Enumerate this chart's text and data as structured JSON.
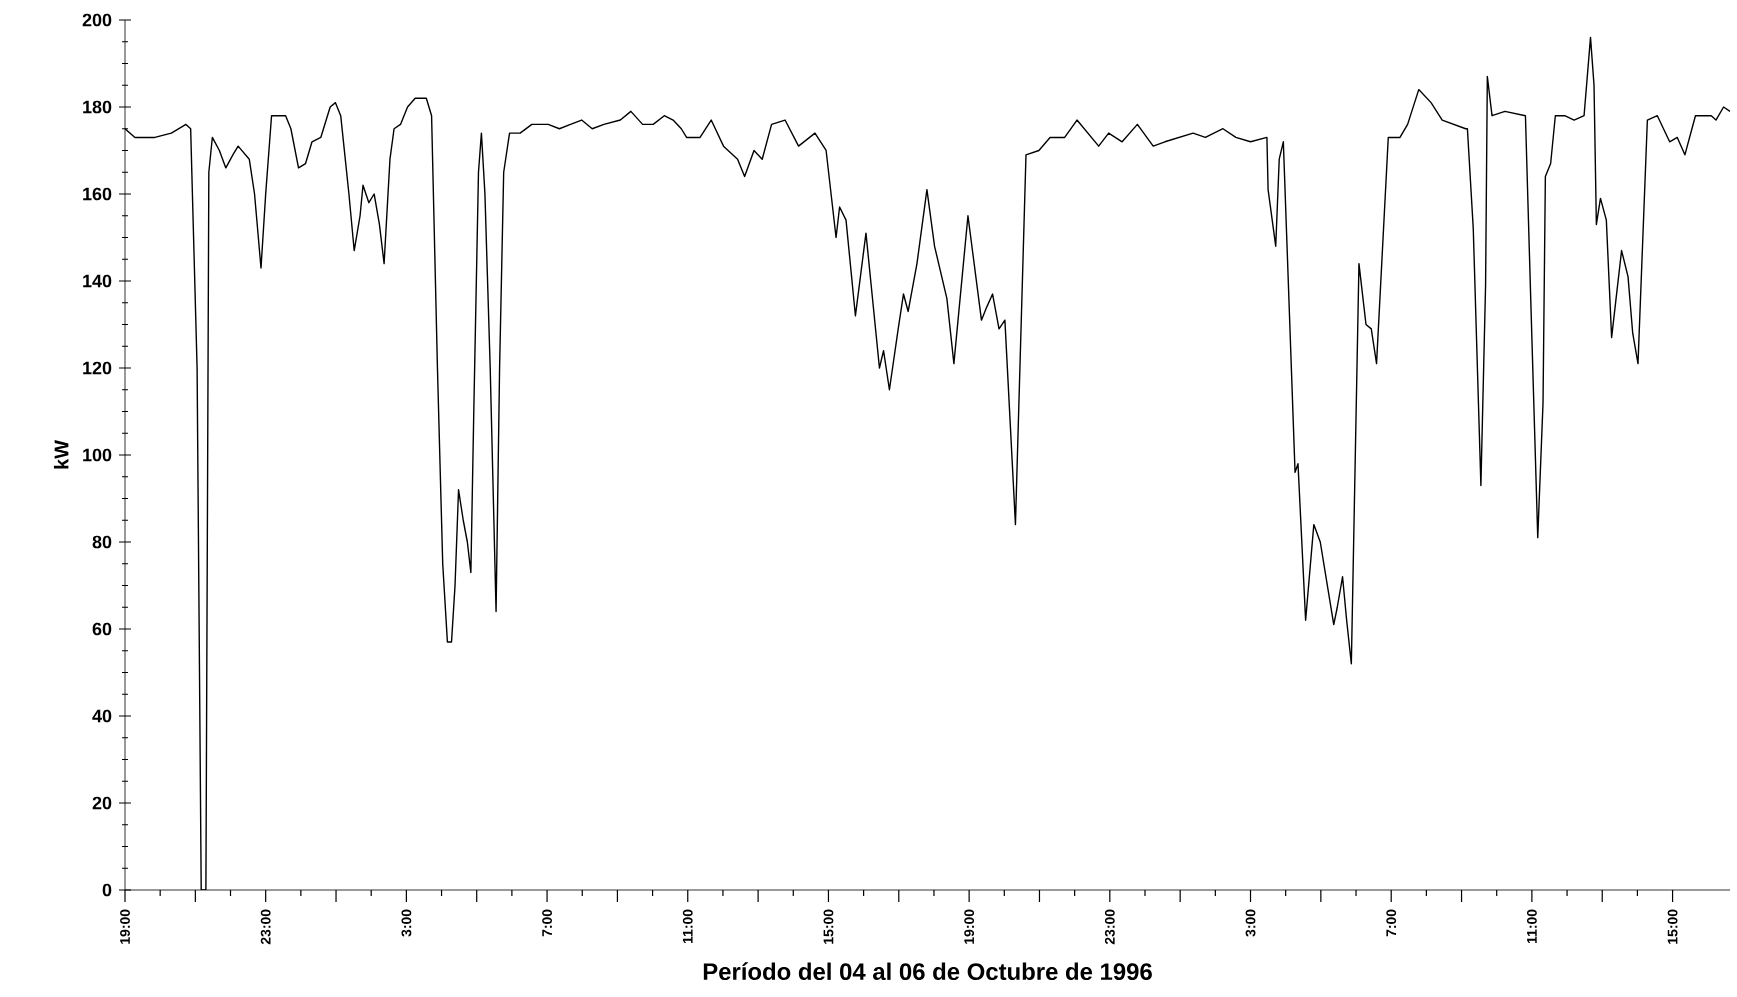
{
  "chart_data": {
    "type": "line",
    "xlabel": "Período del 04 al 06 de Octubre de 1996",
    "ylabel": "kW",
    "x": [
      "1996-10-04T19:00",
      "1996-10-04T19:17",
      "1996-10-04T19:51",
      "1996-10-04T20:19",
      "1996-10-04T20:44",
      "1996-10-04T20:52",
      "1996-10-04T21:03",
      "1996-10-04T21:10",
      "1996-10-04T21:18",
      "1996-10-04T21:23",
      "1996-10-04T21:29",
      "1996-10-04T21:41",
      "1996-10-04T21:52",
      "1996-10-04T22:04",
      "1996-10-04T22:13",
      "1996-10-04T22:32",
      "1996-10-04T22:41",
      "1996-10-04T22:52",
      "1996-10-04T23:00",
      "1996-10-04T23:10",
      "1996-10-04T23:34",
      "1996-10-04T23:43",
      "1996-10-04T23:56",
      "1996-10-05T00:08",
      "1996-10-05T00:19",
      "1996-10-05T00:34",
      "1996-10-05T00:50",
      "1996-10-05T00:59",
      "1996-10-05T01:08",
      "1996-10-05T01:22",
      "1996-10-05T01:31",
      "1996-10-05T01:41",
      "1996-10-05T01:46",
      "1996-10-05T01:56",
      "1996-10-05T02:05",
      "1996-10-05T02:14",
      "1996-10-05T02:22",
      "1996-10-05T02:32",
      "1996-10-05T02:39",
      "1996-10-05T02:50",
      "1996-10-05T03:02",
      "1996-10-05T03:15",
      "1996-10-05T03:34",
      "1996-10-05T03:43",
      "1996-10-05T03:53",
      "1996-10-05T04:02",
      "1996-10-05T04:10",
      "1996-10-05T04:17",
      "1996-10-05T04:23",
      "1996-10-05T04:29",
      "1996-10-05T04:37",
      "1996-10-05T04:44",
      "1996-10-05T04:50",
      "1996-10-05T04:55",
      "1996-10-05T05:03",
      "1996-10-05T05:08",
      "1996-10-05T05:14",
      "1996-10-05T05:23",
      "1996-10-05T05:33",
      "1996-10-05T05:39",
      "1996-10-05T05:46",
      "1996-10-05T05:56",
      "1996-10-05T06:14",
      "1996-10-05T06:34",
      "1996-10-05T07:02",
      "1996-10-05T07:21",
      "1996-10-05T07:40",
      "1996-10-05T07:59",
      "1996-10-05T08:17",
      "1996-10-05T08:37",
      "1996-10-05T09:05",
      "1996-10-05T09:23",
      "1996-10-05T09:43",
      "1996-10-05T10:01",
      "1996-10-05T10:20",
      "1996-10-05T10:35",
      "1996-10-05T10:49",
      "1996-10-05T10:58",
      "1996-10-05T11:21",
      "1996-10-05T11:40",
      "1996-10-05T12:01",
      "1996-10-05T12:25",
      "1996-10-05T12:37",
      "1996-10-05T12:53",
      "1996-10-05T13:07",
      "1996-10-05T13:23",
      "1996-10-05T13:46",
      "1996-10-05T14:09",
      "1996-10-05T14:37",
      "1996-10-05T14:56",
      "1996-10-05T15:13",
      "1996-10-05T15:19",
      "1996-10-05T15:30",
      "1996-10-05T15:46",
      "1996-10-05T16:04",
      "1996-10-05T16:27",
      "1996-10-05T16:34",
      "1996-10-05T16:44",
      "1996-10-05T16:59",
      "1996-10-05T17:08",
      "1996-10-05T17:16",
      "1996-10-05T17:31",
      "1996-10-05T17:48",
      "1996-10-05T18:01",
      "1996-10-05T18:22",
      "1996-10-05T18:34",
      "1996-10-05T18:58",
      "1996-10-05T19:21",
      "1996-10-05T19:30",
      "1996-10-05T19:40",
      "1996-10-05T19:51",
      "1996-10-05T20:01",
      "1996-10-05T20:19",
      "1996-10-05T20:37",
      "1996-10-05T20:59",
      "1996-10-05T21:18",
      "1996-10-05T21:43",
      "1996-10-05T22:04",
      "1996-10-05T22:41",
      "1996-10-05T22:58",
      "1996-10-05T23:21",
      "1996-10-05T23:47",
      "1996-10-06T00:14",
      "1996-10-06T00:34",
      "1996-10-06T01:22",
      "1996-10-06T01:43",
      "1996-10-06T02:13",
      "1996-10-06T02:35",
      "1996-10-06T03:00",
      "1996-10-06T03:28",
      "1996-10-06T03:30",
      "1996-10-06T03:43",
      "1996-10-06T03:49",
      "1996-10-06T03:56",
      "1996-10-06T04:16",
      "1996-10-06T04:21",
      "1996-10-06T04:34",
      "1996-10-06T04:48",
      "1996-10-06T04:59",
      "1996-10-06T05:22",
      "1996-10-06T05:28",
      "1996-10-06T05:37",
      "1996-10-06T05:44",
      "1996-10-06T05:52",
      "1996-10-06T06:05",
      "1996-10-06T06:17",
      "1996-10-06T06:26",
      "1996-10-06T06:35",
      "1996-10-06T06:55",
      "1996-10-06T07:15",
      "1996-10-06T07:28",
      "1996-10-06T07:47",
      "1996-10-06T08:08",
      "1996-10-06T08:27",
      "1996-10-06T09:07",
      "1996-10-06T09:10",
      "1996-10-06T09:20",
      "1996-10-06T09:33",
      "1996-10-06T09:41",
      "1996-10-06T09:44",
      "1996-10-06T09:52",
      "1996-10-06T10:14",
      "1996-10-06T10:49",
      "1996-10-06T10:58",
      "1996-10-06T11:10",
      "1996-10-06T11:19",
      "1996-10-06T11:23",
      "1996-10-06T11:32",
      "1996-10-06T11:40",
      "1996-10-06T11:56",
      "1996-10-06T12:12",
      "1996-10-06T12:29",
      "1996-10-06T12:40",
      "1996-10-06T12:46",
      "1996-10-06T12:50",
      "1996-10-06T12:57",
      "1996-10-06T13:07",
      "1996-10-06T13:16",
      "1996-10-06T13:33",
      "1996-10-06T13:44",
      "1996-10-06T13:52",
      "1996-10-06T14:01",
      "1996-10-06T14:17",
      "1996-10-06T14:34",
      "1996-10-06T14:55",
      "1996-10-06T15:08",
      "1996-10-06T15:21",
      "1996-10-06T15:39",
      "1996-10-06T16:06",
      "1996-10-06T16:14",
      "1996-10-06T16:27",
      "1996-10-06T16:38"
    ],
    "series": [
      {
        "color": "#000000",
        "values": [
          175,
          173,
          173,
          174,
          176,
          175,
          120,
          0,
          0,
          165,
          173,
          170,
          166,
          169,
          171,
          168,
          160,
          143,
          160,
          178,
          178,
          175,
          166,
          167,
          172,
          173,
          180,
          181,
          178,
          160,
          147,
          155,
          162,
          158,
          160,
          153,
          144,
          168,
          175,
          176,
          180,
          182,
          182,
          178,
          120,
          75,
          57,
          57,
          70,
          92,
          85,
          80,
          73,
          110,
          165,
          174,
          160,
          120,
          64,
          120,
          165,
          174,
          174,
          176,
          176,
          175,
          176,
          177,
          175,
          176,
          177,
          179,
          176,
          176,
          178,
          177,
          175,
          173,
          173,
          177,
          171,
          168,
          164,
          170,
          168,
          176,
          177,
          171,
          174,
          170,
          150,
          157,
          154,
          132,
          151,
          120,
          124,
          115,
          129,
          137,
          133,
          144,
          161,
          148,
          136,
          121,
          155,
          131,
          134,
          137,
          129,
          131,
          84,
          169,
          170,
          173,
          173,
          177,
          171,
          174,
          172,
          176,
          171,
          172,
          174,
          173,
          175,
          173,
          172,
          173,
          161,
          148,
          168,
          172,
          96,
          98,
          62,
          84,
          80,
          61,
          65,
          72,
          62,
          52,
          144,
          130,
          129,
          121,
          173,
          173,
          176,
          184,
          181,
          177,
          175,
          175,
          152,
          93,
          139,
          187,
          178,
          179,
          178,
          136,
          81,
          112,
          164,
          167,
          178,
          178,
          177,
          178,
          196,
          185,
          153,
          159,
          154,
          127,
          147,
          141,
          128,
          121,
          177,
          178,
          172,
          173,
          169,
          178,
          178,
          177,
          180,
          179
        ]
      }
    ],
    "xlim": [
      "1996-10-04T19:00",
      "1996-10-06T16:38"
    ],
    "xticks": [
      {
        "value": "1996-10-04T19:00",
        "label": "19:00"
      },
      {
        "value": "1996-10-04T21:00",
        "label": null
      },
      {
        "value": "1996-10-04T23:00",
        "label": "23:00"
      },
      {
        "value": "1996-10-05T01:00",
        "label": null
      },
      {
        "value": "1996-10-05T03:00",
        "label": "3:00"
      },
      {
        "value": "1996-10-05T05:00",
        "label": null
      },
      {
        "value": "1996-10-05T07:00",
        "label": "7:00"
      },
      {
        "value": "1996-10-05T09:00",
        "label": null
      },
      {
        "value": "1996-10-05T11:00",
        "label": "11:00"
      },
      {
        "value": "1996-10-05T13:00",
        "label": null
      },
      {
        "value": "1996-10-05T15:00",
        "label": "15:00"
      },
      {
        "value": "1996-10-05T17:00",
        "label": null
      },
      {
        "value": "1996-10-05T19:00",
        "label": "19:00"
      },
      {
        "value": "1996-10-05T21:00",
        "label": null
      },
      {
        "value": "1996-10-05T23:00",
        "label": "23:00"
      },
      {
        "value": "1996-10-06T01:00",
        "label": null
      },
      {
        "value": "1996-10-06T03:00",
        "label": "3:00"
      },
      {
        "value": "1996-10-06T05:00",
        "label": null
      },
      {
        "value": "1996-10-06T07:00",
        "label": "7:00"
      },
      {
        "value": "1996-10-06T09:00",
        "label": null
      },
      {
        "value": "1996-10-06T11:00",
        "label": "11:00"
      },
      {
        "value": "1996-10-06T13:00",
        "label": null
      },
      {
        "value": "1996-10-06T15:00",
        "label": "15:00"
      }
    ],
    "ylim": [
      0,
      200
    ],
    "yticks": [
      0,
      20,
      40,
      60,
      80,
      100,
      120,
      140,
      160,
      180,
      200
    ],
    "grid": false,
    "marker": "none",
    "line_style": "solid"
  }
}
